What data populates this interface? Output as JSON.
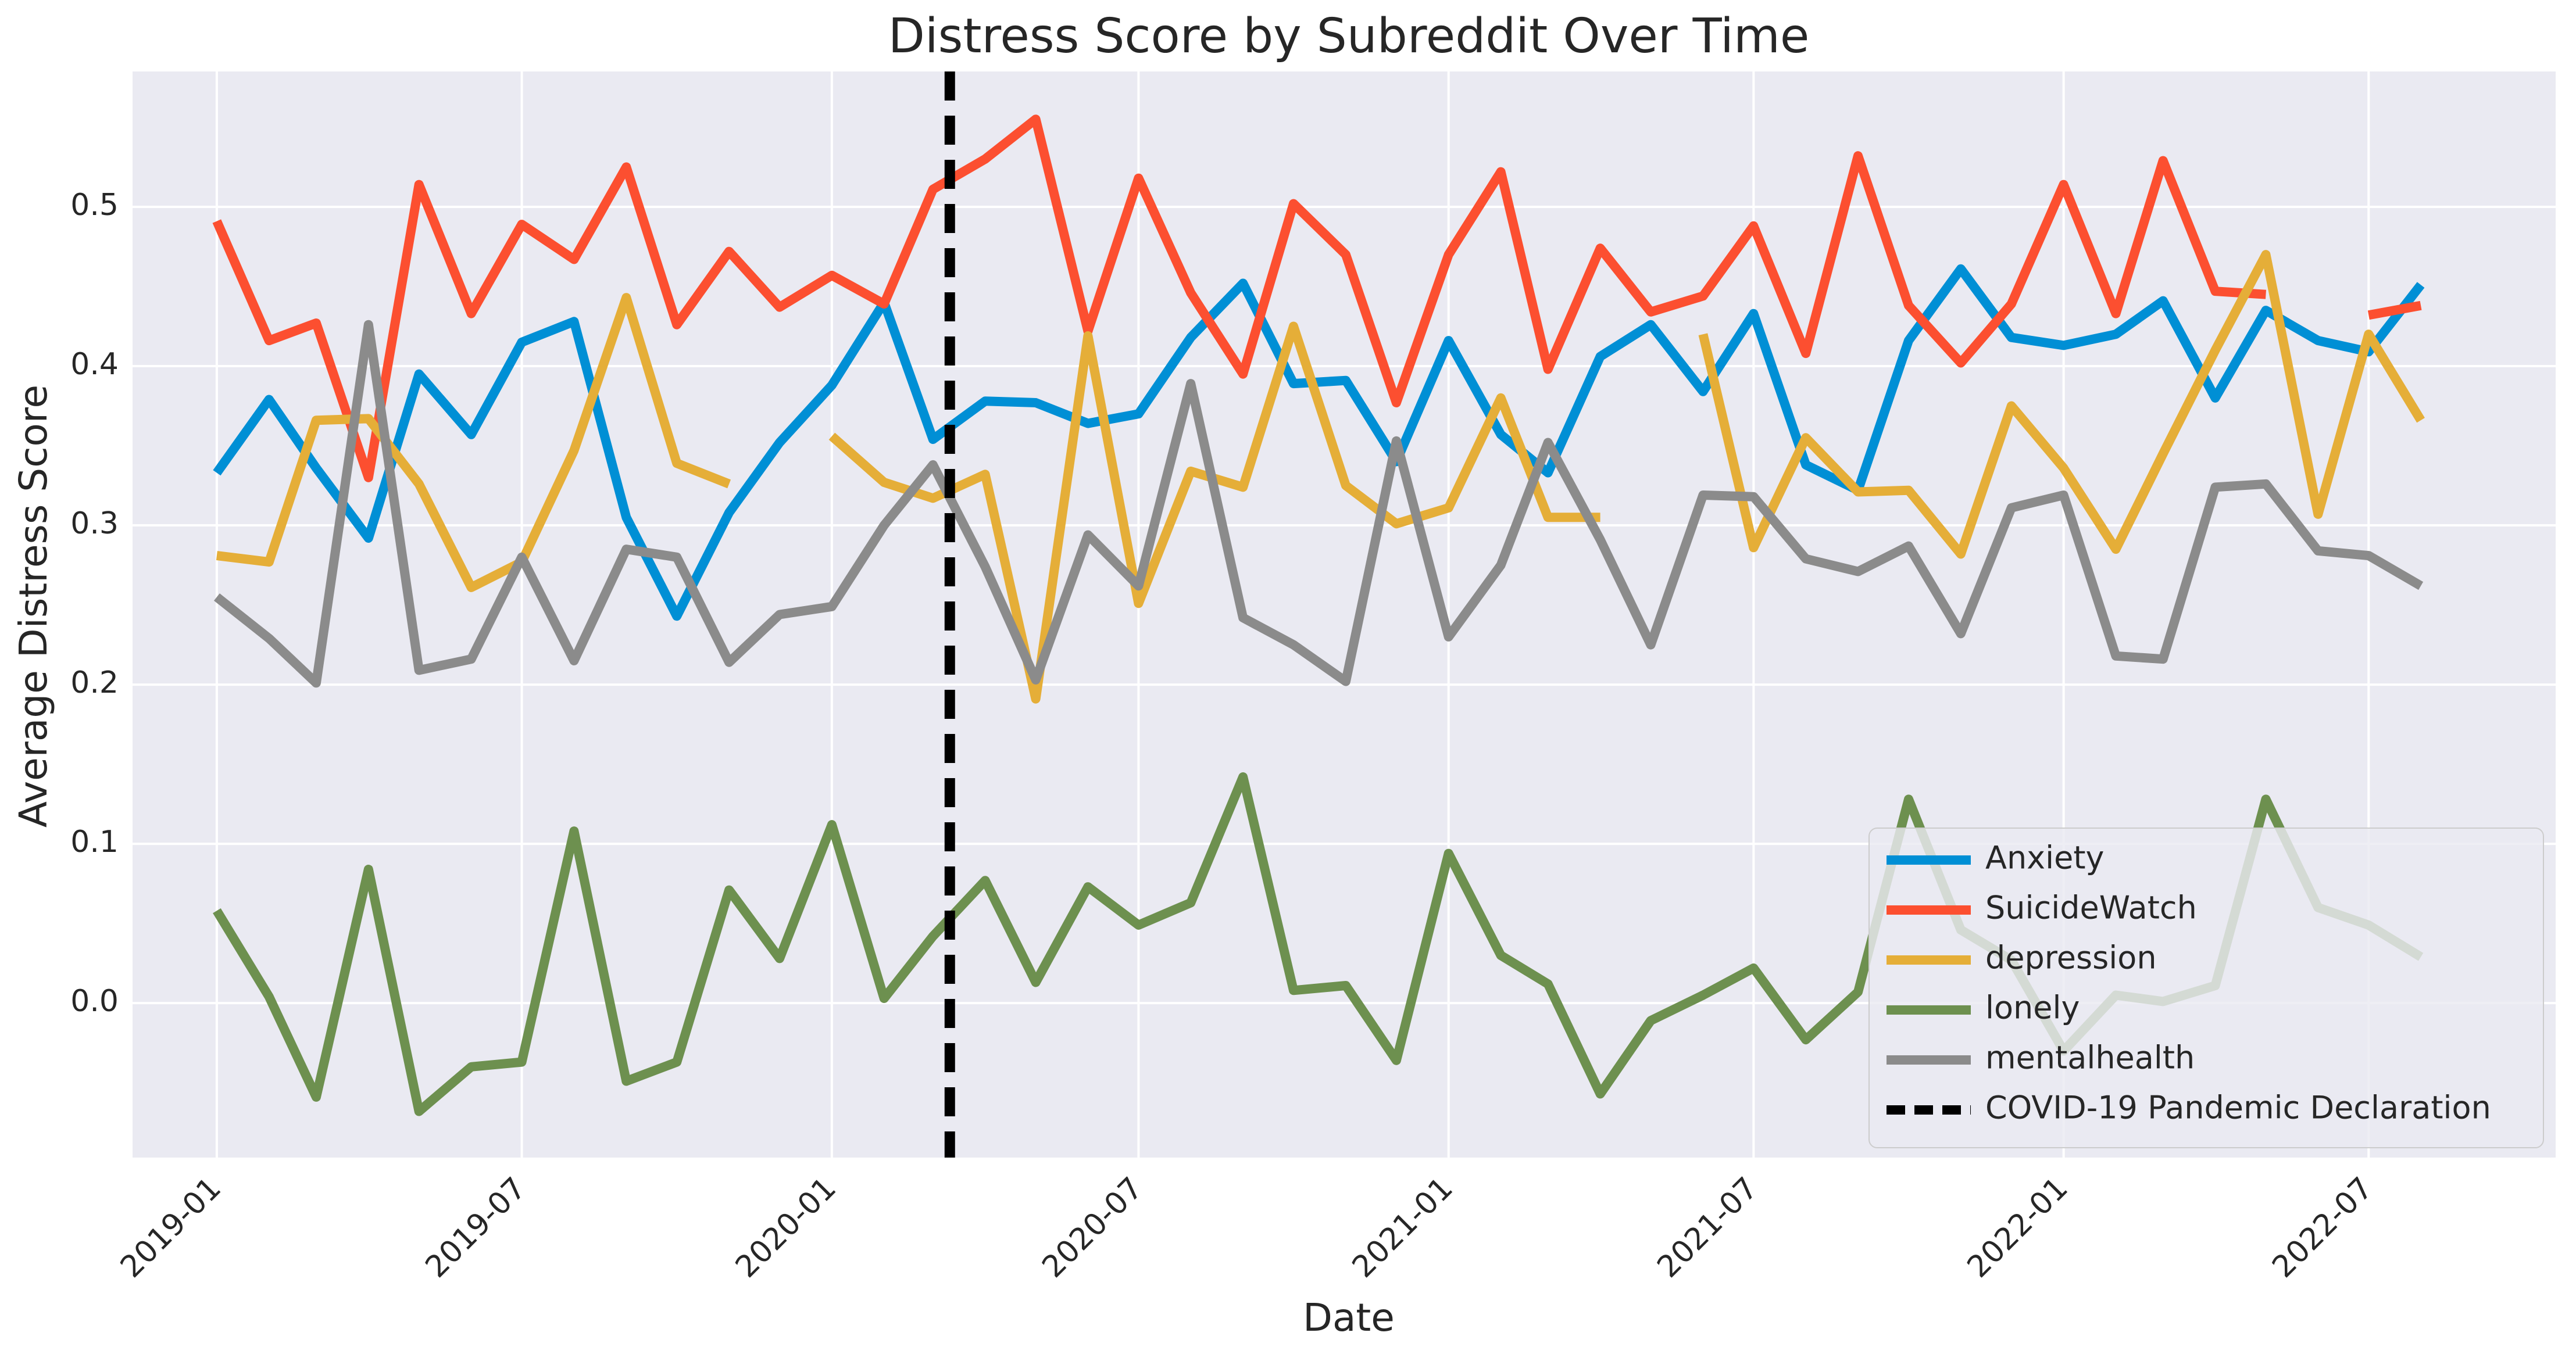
{
  "chart_data": {
    "type": "line",
    "title": "Distress Score by Subreddit Over Time",
    "xlabel": "Date",
    "ylabel": "Average Distress Score",
    "xlim": [
      "2018-11-12",
      "2022-10-20"
    ],
    "ylim": [
      -0.097,
      0.585
    ],
    "grid": true,
    "legend_position": "lower-right",
    "x_ticks": [
      "2019-01",
      "2019-07",
      "2020-01",
      "2020-07",
      "2021-01",
      "2021-07",
      "2022-01",
      "2022-07"
    ],
    "y_ticks": [
      "0.0",
      "0.1",
      "0.2",
      "0.3",
      "0.4",
      "0.5"
    ],
    "x": [
      "2019-01",
      "2019-02",
      "2019-03",
      "2019-04",
      "2019-05",
      "2019-06",
      "2019-07",
      "2019-08",
      "2019-09",
      "2019-10",
      "2019-11",
      "2019-12",
      "2020-01",
      "2020-02",
      "2020-03",
      "2020-04",
      "2020-05",
      "2020-06",
      "2020-07",
      "2020-08",
      "2020-09",
      "2020-10",
      "2020-11",
      "2020-12",
      "2021-01",
      "2021-02",
      "2021-03",
      "2021-04",
      "2021-05",
      "2021-06",
      "2021-07",
      "2021-08",
      "2021-09",
      "2021-10",
      "2021-11",
      "2021-12",
      "2022-01",
      "2022-02",
      "2022-03",
      "2022-04",
      "2022-05",
      "2022-06",
      "2022-07",
      "2022-08"
    ],
    "series": [
      {
        "name": "Anxiety",
        "color": "#008fd5",
        "values": [
          0.333,
          0.379,
          0.336,
          0.292,
          0.395,
          0.357,
          0.415,
          0.428,
          0.305,
          0.243,
          0.308,
          0.352,
          0.388,
          0.44,
          0.354,
          0.378,
          0.377,
          0.364,
          0.37,
          0.418,
          0.452,
          0.389,
          0.391,
          0.34,
          0.416,
          0.357,
          0.333,
          0.406,
          0.426,
          0.384,
          0.433,
          0.338,
          0.322,
          0.416,
          0.461,
          0.418,
          0.413,
          0.42,
          0.441,
          0.38,
          0.435,
          0.416,
          0.409,
          0.451
        ]
      },
      {
        "name": "SuicideWatch",
        "color": "#fc4f30",
        "values": [
          0.491,
          0.416,
          0.427,
          0.33,
          0.514,
          0.433,
          0.489,
          0.467,
          0.525,
          0.426,
          0.472,
          0.437,
          0.457,
          0.439,
          0.511,
          0.53,
          0.555,
          0.422,
          0.518,
          0.446,
          0.395,
          0.502,
          0.47,
          0.377,
          0.47,
          0.522,
          0.398,
          0.474,
          0.434,
          0.444,
          0.488,
          0.408,
          0.532,
          0.438,
          0.402,
          0.439,
          0.514,
          0.433,
          0.529,
          0.447,
          0.445,
          null,
          0.432,
          0.438
        ]
      },
      {
        "name": "depression",
        "color": "#e5ae38",
        "values": [
          0.281,
          0.277,
          0.366,
          0.367,
          0.326,
          0.261,
          0.277,
          0.347,
          0.443,
          0.339,
          0.326,
          null,
          0.356,
          0.327,
          0.317,
          0.332,
          0.191,
          0.419,
          0.251,
          0.334,
          0.324,
          0.425,
          0.325,
          0.301,
          0.311,
          0.38,
          0.305,
          0.305,
          null,
          0.42,
          0.286,
          0.355,
          0.321,
          0.322,
          0.282,
          0.375,
          0.336,
          0.285,
          0.345,
          0.41,
          0.47,
          0.307,
          0.42,
          0.366
        ]
      },
      {
        "name": "lonely",
        "color": "#6d904f",
        "values": [
          0.058,
          0.004,
          -0.059,
          0.084,
          -0.068,
          -0.04,
          -0.037,
          0.108,
          -0.049,
          -0.037,
          0.071,
          0.028,
          0.112,
          0.003,
          0.042,
          0.077,
          0.013,
          0.073,
          0.049,
          0.063,
          0.142,
          0.008,
          0.011,
          -0.036,
          0.094,
          0.03,
          0.012,
          -0.057,
          -0.011,
          0.005,
          0.022,
          -0.023,
          0.007,
          0.128,
          0.046,
          0.027,
          -0.03,
          0.005,
          0.001,
          0.011,
          0.128,
          0.06,
          0.049,
          0.029
        ]
      },
      {
        "name": "mentalhealth",
        "color": "#8b8b8b",
        "values": [
          0.255,
          0.229,
          0.201,
          0.426,
          0.209,
          0.216,
          0.28,
          0.215,
          0.285,
          0.28,
          0.214,
          0.244,
          0.249,
          0.3,
          0.338,
          0.274,
          0.203,
          0.294,
          0.262,
          0.389,
          0.242,
          0.225,
          0.202,
          0.353,
          0.23,
          0.275,
          0.352,
          0.291,
          0.225,
          0.319,
          0.318,
          0.279,
          0.271,
          0.287,
          0.232,
          0.311,
          0.319,
          0.218,
          0.216,
          0.324,
          0.326,
          0.284,
          0.281,
          0.262
        ]
      }
    ],
    "vline": {
      "label": "COVID-19 Pandemic Declaration",
      "x": "2020-03-11",
      "color": "#000000"
    }
  }
}
